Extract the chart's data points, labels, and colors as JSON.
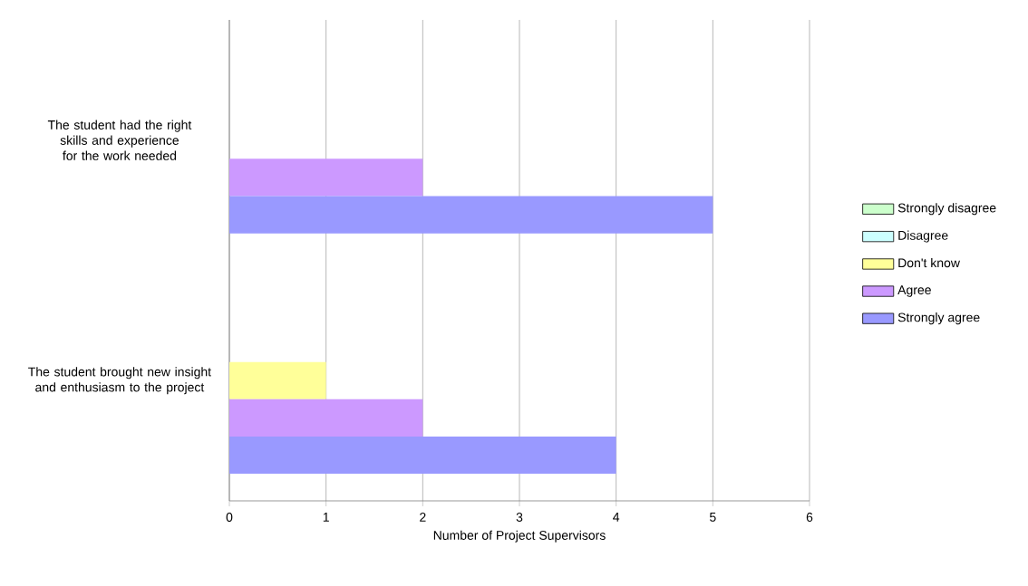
{
  "chart_data": {
    "type": "bar",
    "orientation": "horizontal",
    "xlabel": "Number of Project Supervisors",
    "categories": [
      "The student had the right skills and experience for the work needed",
      "The student brought new insight and enthusiasm to the project"
    ],
    "series": [
      {
        "name": "Strongly disagree",
        "color": "#ccffcc",
        "values": [
          0,
          0
        ]
      },
      {
        "name": "Disagree",
        "color": "#ccffff",
        "values": [
          0,
          0
        ]
      },
      {
        "name": "Don't know",
        "color": "#ffff99",
        "values": [
          0,
          1
        ]
      },
      {
        "name": "Agree",
        "color": "#cc99ff",
        "values": [
          2,
          2
        ]
      },
      {
        "name": "Strongly agree",
        "color": "#9999ff",
        "values": [
          5,
          4
        ]
      }
    ],
    "xlim": [
      0,
      6
    ],
    "xticks": [
      0,
      1,
      2,
      3,
      4,
      5,
      6
    ],
    "grid": "x",
    "legend": "right"
  }
}
